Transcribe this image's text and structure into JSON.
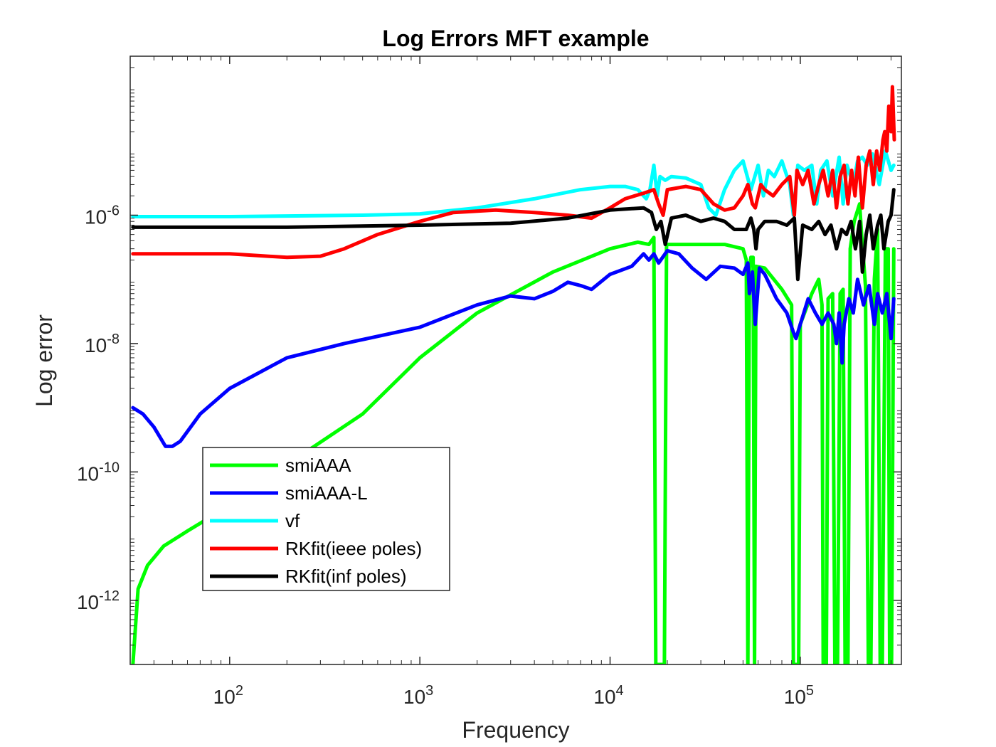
{
  "chart_data": {
    "type": "line",
    "title": "Log Errors MFT example",
    "xlabel": "Frequency",
    "ylabel": "Log error",
    "xscale": "log",
    "yscale": "log",
    "xlim": [
      30,
      340000
    ],
    "ylim": [
      1e-13,
      0.0003
    ],
    "x_ticks": [
      {
        "value": 100,
        "base": "10",
        "exp": "2"
      },
      {
        "value": 1000,
        "base": "10",
        "exp": "3"
      },
      {
        "value": 10000,
        "base": "10",
        "exp": "4"
      },
      {
        "value": 100000,
        "base": "10",
        "exp": "5"
      }
    ],
    "y_ticks": [
      {
        "value": 1e-12,
        "base": "10",
        "exp": "-12"
      },
      {
        "value": 1e-10,
        "base": "10",
        "exp": "-10"
      },
      {
        "value": 1e-08,
        "base": "10",
        "exp": "-8"
      },
      {
        "value": 1e-06,
        "base": "10",
        "exp": "-6"
      }
    ],
    "grid": false,
    "legend_position": "lower-left",
    "series": [
      {
        "name": "smiAAA",
        "color": "#00ff00",
        "points": [
          [
            31,
            1e-13
          ],
          [
            33,
            1.5e-12
          ],
          [
            37,
            3.5e-12
          ],
          [
            45,
            7e-12
          ],
          [
            60,
            1.2e-11
          ],
          [
            100,
            3e-11
          ],
          [
            200,
            1.3e-10
          ],
          [
            500,
            8e-10
          ],
          [
            1000,
            6e-09
          ],
          [
            2000,
            3e-08
          ],
          [
            5000,
            1.3e-07
          ],
          [
            10000,
            3e-07
          ],
          [
            14000,
            3.8e-07
          ],
          [
            16000,
            3.5e-07
          ],
          [
            17000,
            4.5e-07
          ],
          [
            17400,
            1e-13
          ],
          [
            19300,
            1e-13
          ],
          [
            19800,
            3.5e-07
          ],
          [
            25000,
            3.5e-07
          ],
          [
            40000,
            3.5e-07
          ],
          [
            50000,
            3e-07
          ],
          [
            52000,
            2e-07
          ],
          [
            53000,
            1e-13
          ],
          [
            54000,
            1.5e-07
          ],
          [
            55000,
            2.2e-07
          ],
          [
            56500,
            2.2e-07
          ],
          [
            57500,
            1e-13
          ],
          [
            58500,
            1.6e-07
          ],
          [
            65000,
            1.5e-07
          ],
          [
            80000,
            7e-08
          ],
          [
            90000,
            4e-08
          ],
          [
            92000,
            1e-13
          ],
          [
            98000,
            1e-13
          ],
          [
            100000,
            2e-08
          ],
          [
            115000,
            6e-08
          ],
          [
            125000,
            1e-07
          ],
          [
            130000,
            4e-08
          ],
          [
            132000,
            1e-13
          ],
          [
            137000,
            1e-13
          ],
          [
            140000,
            5e-08
          ],
          [
            148000,
            6e-08
          ],
          [
            152000,
            1e-13
          ],
          [
            157000,
            1e-13
          ],
          [
            162000,
            6e-08
          ],
          [
            168000,
            7e-08
          ],
          [
            172000,
            1e-13
          ],
          [
            178000,
            1e-13
          ],
          [
            183000,
            3e-07
          ],
          [
            192000,
            8e-07
          ],
          [
            205000,
            1.5e-06
          ],
          [
            210000,
            5e-07
          ],
          [
            220000,
            8e-08
          ],
          [
            228000,
            1e-13
          ],
          [
            235000,
            1e-13
          ],
          [
            245000,
            1e-07
          ],
          [
            255000,
            6e-07
          ],
          [
            263000,
            1e-13
          ],
          [
            270000,
            1e-13
          ],
          [
            280000,
            3e-07
          ],
          [
            290000,
            3e-07
          ],
          [
            295000,
            1e-13
          ],
          [
            302000,
            1e-13
          ],
          [
            310000,
            3e-07
          ]
        ]
      },
      {
        "name": "smiAAA-L",
        "color": "#0000ff",
        "points": [
          [
            31,
            1e-09
          ],
          [
            35,
            8e-10
          ],
          [
            40,
            5e-10
          ],
          [
            46,
            2.5e-10
          ],
          [
            50,
            2.5e-10
          ],
          [
            55,
            3e-10
          ],
          [
            70,
            8e-10
          ],
          [
            100,
            2e-09
          ],
          [
            200,
            6e-09
          ],
          [
            400,
            1e-08
          ],
          [
            1000,
            1.8e-08
          ],
          [
            2000,
            4e-08
          ],
          [
            3000,
            5.5e-08
          ],
          [
            4000,
            5e-08
          ],
          [
            5000,
            6.5e-08
          ],
          [
            6000,
            9e-08
          ],
          [
            7000,
            8e-08
          ],
          [
            8000,
            7e-08
          ],
          [
            10000,
            1.2e-07
          ],
          [
            13000,
            1.6e-07
          ],
          [
            15000,
            2.5e-07
          ],
          [
            16000,
            2e-07
          ],
          [
            17000,
            2.5e-07
          ],
          [
            18000,
            1.8e-07
          ],
          [
            20000,
            2.8e-07
          ],
          [
            23000,
            2.5e-07
          ],
          [
            27000,
            1.5e-07
          ],
          [
            32000,
            1e-07
          ],
          [
            38000,
            1.6e-07
          ],
          [
            45000,
            1.5e-07
          ],
          [
            50000,
            1.2e-07
          ],
          [
            53000,
            1.8e-07
          ],
          [
            54000,
            6e-08
          ],
          [
            56000,
            1.3e-07
          ],
          [
            58000,
            2e-08
          ],
          [
            61000,
            1.5e-07
          ],
          [
            65000,
            1.2e-07
          ],
          [
            75000,
            5e-08
          ],
          [
            85000,
            3e-08
          ],
          [
            92000,
            1.5e-08
          ],
          [
            95000,
            1.2e-08
          ],
          [
            100000,
            2e-08
          ],
          [
            110000,
            5e-08
          ],
          [
            120000,
            3e-08
          ],
          [
            130000,
            2e-08
          ],
          [
            140000,
            3e-08
          ],
          [
            150000,
            2e-08
          ],
          [
            155000,
            1e-08
          ],
          [
            160000,
            3e-08
          ],
          [
            166000,
            5e-09
          ],
          [
            170000,
            2e-08
          ],
          [
            180000,
            5e-08
          ],
          [
            190000,
            3e-08
          ],
          [
            200000,
            1e-07
          ],
          [
            215000,
            4e-08
          ],
          [
            230000,
            8e-08
          ],
          [
            245000,
            2e-08
          ],
          [
            255000,
            6e-08
          ],
          [
            270000,
            3e-08
          ],
          [
            285000,
            6e-08
          ],
          [
            300000,
            1.2e-08
          ],
          [
            310000,
            5e-08
          ]
        ]
      },
      {
        "name": "vf",
        "color": "#00ffff",
        "points": [
          [
            31,
            9.5e-07
          ],
          [
            100,
            9.5e-07
          ],
          [
            500,
            1e-06
          ],
          [
            1000,
            1.05e-06
          ],
          [
            2000,
            1.3e-06
          ],
          [
            4000,
            1.8e-06
          ],
          [
            7000,
            2.5e-06
          ],
          [
            10000,
            2.8e-06
          ],
          [
            12000,
            2.8e-06
          ],
          [
            14000,
            2.5e-06
          ],
          [
            15500,
            1.8e-06
          ],
          [
            16200,
            2.5e-06
          ],
          [
            17000,
            6e-06
          ],
          [
            17700,
            2e-06
          ],
          [
            18300,
            4e-06
          ],
          [
            19500,
            3.5e-06
          ],
          [
            21000,
            4e-06
          ],
          [
            25000,
            3.8e-06
          ],
          [
            30000,
            3e-06
          ],
          [
            33000,
            1.3e-06
          ],
          [
            36000,
            1e-06
          ],
          [
            40000,
            2.5e-06
          ],
          [
            45000,
            5e-06
          ],
          [
            50000,
            7e-06
          ],
          [
            55000,
            2.5e-06
          ],
          [
            60000,
            6e-06
          ],
          [
            64000,
            2e-06
          ],
          [
            68000,
            5e-06
          ],
          [
            73000,
            4e-06
          ],
          [
            80000,
            7e-06
          ],
          [
            88000,
            3e-06
          ],
          [
            92000,
            1e-06
          ],
          [
            97000,
            6e-06
          ],
          [
            105000,
            5e-06
          ],
          [
            115000,
            6e-06
          ],
          [
            122000,
            1.5e-06
          ],
          [
            128000,
            5e-06
          ],
          [
            138000,
            7e-06
          ],
          [
            148000,
            2e-06
          ],
          [
            160000,
            8e-06
          ],
          [
            168000,
            1.5e-06
          ],
          [
            176000,
            6e-06
          ],
          [
            190000,
            3e-06
          ],
          [
            200000,
            7e-06
          ],
          [
            212000,
            8e-06
          ],
          [
            225000,
            6e-06
          ],
          [
            240000,
            9e-06
          ],
          [
            260000,
            3e-06
          ],
          [
            280000,
            1e-05
          ],
          [
            300000,
            5e-06
          ],
          [
            310000,
            6e-06
          ]
        ]
      },
      {
        "name": "RKfit(ieee poles)",
        "color": "#ff0000",
        "points": [
          [
            31,
            2.5e-07
          ],
          [
            100,
            2.5e-07
          ],
          [
            200,
            2.2e-07
          ],
          [
            300,
            2.3e-07
          ],
          [
            400,
            3e-07
          ],
          [
            600,
            5e-07
          ],
          [
            1000,
            8e-07
          ],
          [
            1500,
            1.1e-06
          ],
          [
            2500,
            1.2e-06
          ],
          [
            4000,
            1.1e-06
          ],
          [
            6000,
            1e-06
          ],
          [
            8000,
            9e-07
          ],
          [
            10000,
            1.3e-06
          ],
          [
            12000,
            1.8e-06
          ],
          [
            15000,
            2.2e-06
          ],
          [
            17000,
            2.5e-06
          ],
          [
            18000,
            1.5e-06
          ],
          [
            19000,
            1e-06
          ],
          [
            20000,
            2.5e-06
          ],
          [
            25000,
            2.8e-06
          ],
          [
            30000,
            2.5e-06
          ],
          [
            35000,
            1.5e-06
          ],
          [
            40000,
            1.2e-06
          ],
          [
            45000,
            1.3e-06
          ],
          [
            50000,
            2e-06
          ],
          [
            53000,
            3e-06
          ],
          [
            56000,
            1.5e-06
          ],
          [
            58000,
            1.3e-06
          ],
          [
            62000,
            3e-06
          ],
          [
            65000,
            2.5e-06
          ],
          [
            72000,
            2e-06
          ],
          [
            80000,
            3e-06
          ],
          [
            88000,
            4e-06
          ],
          [
            93000,
            1e-06
          ],
          [
            96000,
            5e-06
          ],
          [
            103000,
            3e-06
          ],
          [
            110000,
            5e-06
          ],
          [
            118000,
            1.5e-06
          ],
          [
            125000,
            3e-06
          ],
          [
            132000,
            5e-06
          ],
          [
            140000,
            2e-06
          ],
          [
            148000,
            5e-06
          ],
          [
            155000,
            1.3e-06
          ],
          [
            162000,
            4e-06
          ],
          [
            170000,
            6e-06
          ],
          [
            178000,
            1.5e-06
          ],
          [
            186000,
            5e-06
          ],
          [
            194000,
            2e-06
          ],
          [
            202000,
            8e-06
          ],
          [
            212000,
            1.3e-06
          ],
          [
            222000,
            6e-06
          ],
          [
            232000,
            1e-05
          ],
          [
            242000,
            3e-06
          ],
          [
            252000,
            1e-05
          ],
          [
            262000,
            5e-06
          ],
          [
            272000,
            1.5e-05
          ],
          [
            278000,
            2e-05
          ],
          [
            285000,
            1e-05
          ],
          [
            292000,
            5e-05
          ],
          [
            300000,
            2e-05
          ],
          [
            305000,
            0.0001
          ],
          [
            312000,
            1.5e-05
          ]
        ]
      },
      {
        "name": "RKfit(inf poles)",
        "color": "#000000",
        "points": [
          [
            31,
            6.5e-07
          ],
          [
            200,
            6.5e-07
          ],
          [
            1000,
            7e-07
          ],
          [
            3000,
            7.5e-07
          ],
          [
            6000,
            9e-07
          ],
          [
            10000,
            1.2e-06
          ],
          [
            15000,
            1.3e-06
          ],
          [
            16500,
            1.1e-06
          ],
          [
            17500,
            6e-07
          ],
          [
            18500,
            8e-07
          ],
          [
            19500,
            3.5e-07
          ],
          [
            21000,
            9e-07
          ],
          [
            25000,
            1e-06
          ],
          [
            30000,
            8e-07
          ],
          [
            35000,
            9e-07
          ],
          [
            40000,
            8e-07
          ],
          [
            45000,
            6e-07
          ],
          [
            52000,
            6e-07
          ],
          [
            55000,
            9e-07
          ],
          [
            57000,
            6e-07
          ],
          [
            58500,
            3e-07
          ],
          [
            60000,
            6e-07
          ],
          [
            65000,
            8e-07
          ],
          [
            75000,
            8e-07
          ],
          [
            85000,
            7e-07
          ],
          [
            93000,
            9e-07
          ],
          [
            97000,
            1e-07
          ],
          [
            103000,
            7e-07
          ],
          [
            115000,
            6e-07
          ],
          [
            125000,
            8e-07
          ],
          [
            135000,
            5e-07
          ],
          [
            145000,
            7e-07
          ],
          [
            155000,
            3e-07
          ],
          [
            165000,
            6e-07
          ],
          [
            175000,
            5e-07
          ],
          [
            185000,
            8e-07
          ],
          [
            195000,
            3e-07
          ],
          [
            205000,
            8e-07
          ],
          [
            212000,
            1.3e-07
          ],
          [
            222000,
            5e-07
          ],
          [
            232000,
            1e-06
          ],
          [
            242000,
            3e-07
          ],
          [
            255000,
            7e-07
          ],
          [
            265000,
            1e-06
          ],
          [
            275000,
            3e-07
          ],
          [
            290000,
            8e-07
          ],
          [
            300000,
            1e-06
          ],
          [
            310000,
            2.5e-06
          ]
        ]
      }
    ]
  }
}
